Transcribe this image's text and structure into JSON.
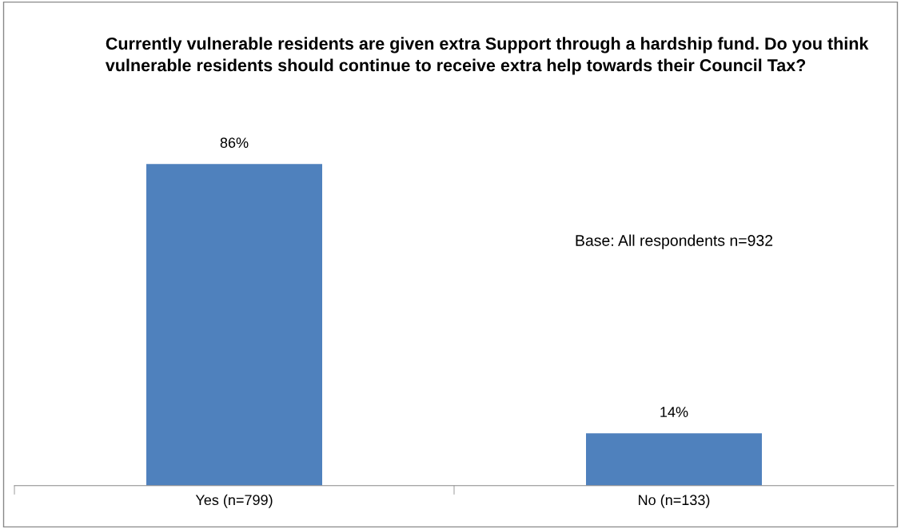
{
  "chart_data": {
    "type": "bar",
    "title": "Currently vulnerable residents are given extra Support through a hardship fund. Do you think vulnerable residents should continue to receive extra help towards their Council Tax?",
    "categories": [
      "Yes (n=799)",
      "No (n=133)"
    ],
    "values": [
      86,
      14
    ],
    "color": "#4f81bd",
    "value_labels": [
      "86%",
      "14%"
    ],
    "annotations": [
      "Base: All respondents n=932"
    ],
    "grid": false,
    "legend": false
  }
}
